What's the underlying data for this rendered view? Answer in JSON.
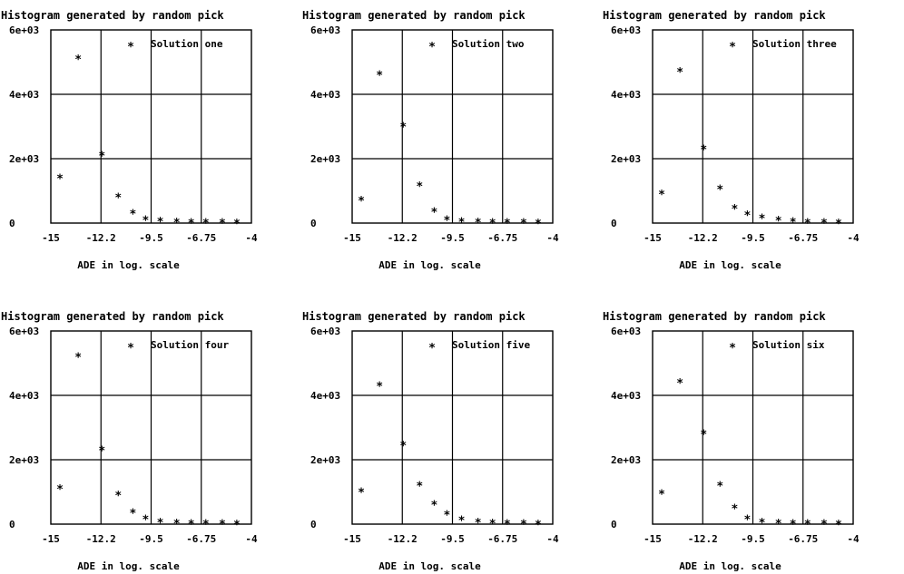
{
  "chart_data": [
    {
      "type": "scatter",
      "title": "Histogram generated by random pick",
      "xlabel": "ADE in log. scale",
      "ylabel": "",
      "xlim": [
        -15,
        -4
      ],
      "ylim": [
        0,
        6000
      ],
      "x_ticks": [
        "-15",
        "-12.2",
        "-9.5",
        "-6.75",
        "-4"
      ],
      "y_ticks": [
        "0",
        "2e+03",
        "4e+03",
        "6e+03"
      ],
      "grid": true,
      "legend": "top-right",
      "series": [
        {
          "name": "Solution one",
          "x": [
            -14.5,
            -13.5,
            -12.2,
            -11.3,
            -10.5,
            -9.8,
            -9.0,
            -8.1,
            -7.3,
            -6.5,
            -5.6,
            -4.8
          ],
          "y": [
            1400,
            5100,
            2100,
            800,
            300,
            100,
            50,
            30,
            20,
            10,
            10,
            5
          ]
        }
      ]
    },
    {
      "type": "scatter",
      "title": "Histogram generated by random pick",
      "xlabel": "ADE in log. scale",
      "ylabel": "",
      "xlim": [
        -15,
        -4
      ],
      "ylim": [
        0,
        6000
      ],
      "x_ticks": [
        "-15",
        "-12.2",
        "-9.5",
        "-6.75",
        "-4"
      ],
      "y_ticks": [
        "0",
        "2e+03",
        "4e+03",
        "6e+03"
      ],
      "grid": true,
      "legend": "top-right",
      "series": [
        {
          "name": "Solution two",
          "x": [
            -14.5,
            -13.5,
            -12.2,
            -11.3,
            -10.5,
            -9.8,
            -9.0,
            -8.1,
            -7.3,
            -6.5,
            -5.6,
            -4.8
          ],
          "y": [
            700,
            4600,
            3000,
            1150,
            350,
            100,
            40,
            30,
            20,
            10,
            10,
            5
          ]
        }
      ]
    },
    {
      "type": "scatter",
      "title": "Histogram generated by random pick",
      "xlabel": "ADE in log. scale",
      "ylabel": "",
      "xlim": [
        -15,
        -4
      ],
      "ylim": [
        0,
        6000
      ],
      "x_ticks": [
        "-15",
        "-12.2",
        "-9.5",
        "-6.75",
        "-4"
      ],
      "y_ticks": [
        "0",
        "2e+03",
        "4e+03",
        "6e+03"
      ],
      "grid": true,
      "legend": "top-right",
      "series": [
        {
          "name": "Solution three",
          "x": [
            -14.5,
            -13.5,
            -12.2,
            -11.3,
            -10.5,
            -9.8,
            -9.0,
            -8.1,
            -7.3,
            -6.5,
            -5.6,
            -4.8
          ],
          "y": [
            900,
            4700,
            2300,
            1050,
            450,
            250,
            150,
            80,
            40,
            20,
            10,
            5
          ]
        }
      ]
    },
    {
      "type": "scatter",
      "title": "Histogram generated by random pick",
      "xlabel": "ADE in log. scale",
      "ylabel": "",
      "xlim": [
        -15,
        -4
      ],
      "ylim": [
        0,
        6000
      ],
      "x_ticks": [
        "-15",
        "-12.2",
        "-9.5",
        "-6.75",
        "-4"
      ],
      "y_ticks": [
        "0",
        "2e+03",
        "4e+03",
        "6e+03"
      ],
      "grid": true,
      "legend": "top-right",
      "series": [
        {
          "name": "Solution four",
          "x": [
            -14.5,
            -13.5,
            -12.2,
            -11.3,
            -10.5,
            -9.8,
            -9.0,
            -8.1,
            -7.3,
            -6.5,
            -5.6,
            -4.8
          ],
          "y": [
            1100,
            5200,
            2300,
            900,
            350,
            150,
            60,
            30,
            20,
            10,
            10,
            5
          ]
        }
      ]
    },
    {
      "type": "scatter",
      "title": "Histogram generated by random pick",
      "xlabel": "ADE in log. scale",
      "ylabel": "",
      "xlim": [
        -15,
        -4
      ],
      "ylim": [
        0,
        6000
      ],
      "x_ticks": [
        "-15",
        "-12.2",
        "-9.5",
        "-6.75",
        "-4"
      ],
      "y_ticks": [
        "0",
        "2e+03",
        "4e+03",
        "6e+03"
      ],
      "grid": true,
      "legend": "top-right",
      "series": [
        {
          "name": "Solution five",
          "x": [
            -14.5,
            -13.5,
            -12.2,
            -11.3,
            -10.5,
            -9.8,
            -9.0,
            -8.1,
            -7.3,
            -6.5,
            -5.6,
            -4.8
          ],
          "y": [
            1000,
            4300,
            2450,
            1200,
            600,
            300,
            130,
            60,
            30,
            15,
            10,
            5
          ]
        }
      ]
    },
    {
      "type": "scatter",
      "title": "Histogram generated by random pick",
      "xlabel": "ADE in log. scale",
      "ylabel": "",
      "xlim": [
        -15,
        -4
      ],
      "ylim": [
        0,
        6000
      ],
      "x_ticks": [
        "-15",
        "-12.2",
        "-9.5",
        "-6.75",
        "-4"
      ],
      "y_ticks": [
        "0",
        "2e+03",
        "4e+03",
        "6e+03"
      ],
      "grid": true,
      "legend": "top-right",
      "series": [
        {
          "name": "Solution six",
          "x": [
            -14.5,
            -13.5,
            -12.2,
            -11.3,
            -10.5,
            -9.8,
            -9.0,
            -8.1,
            -7.3,
            -6.5,
            -5.6,
            -4.8
          ],
          "y": [
            950,
            4400,
            2800,
            1200,
            500,
            150,
            50,
            30,
            20,
            10,
            10,
            5
          ]
        }
      ]
    }
  ]
}
